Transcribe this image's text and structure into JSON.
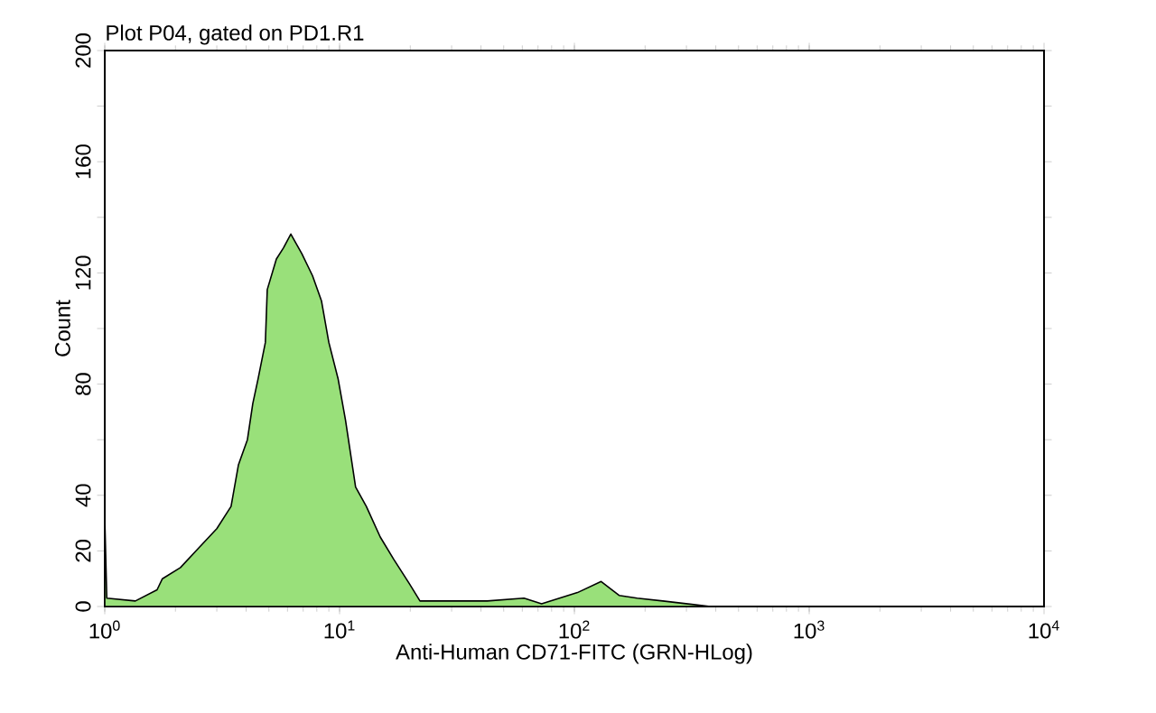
{
  "chart_data": {
    "type": "area",
    "title": "Plot P04, gated on PD1.R1",
    "xlabel": "Anti-Human CD71-FITC (GRN-HLog)",
    "ylabel": "Count",
    "log": "x",
    "xlim": [
      1,
      10000
    ],
    "ylim": [
      0,
      200
    ],
    "xticks": [
      {
        "value": 1,
        "label": "10$^{0}$"
      },
      {
        "value": 10,
        "label": "10$^{1}$"
      },
      {
        "value": 100,
        "label": "10$^{2}$"
      },
      {
        "value": 1000,
        "label": "10$^{3}$"
      },
      {
        "value": 10000,
        "label": "10$^{4}$"
      }
    ],
    "yticks": [
      0,
      20,
      40,
      {
        "value": 60,
        "label": null
      },
      80,
      {
        "value": 100,
        "label": null
      },
      120,
      {
        "value": 140,
        "label": null
      },
      160,
      {
        "value": 180,
        "label": null
      },
      200
    ],
    "series": [
      {
        "color": "#99e07a",
        "x": [
          1.0,
          1.02,
          1.35,
          1.67,
          1.76,
          2.1,
          2.51,
          3.0,
          3.45,
          3.71,
          4.05,
          4.27,
          4.5,
          4.83,
          4.92,
          5.38,
          5.77,
          6.2,
          6.9,
          7.67,
          8.37,
          9.0,
          9.85,
          10.6,
          11.7,
          13.0,
          14.9,
          17.0,
          19.9,
          22.0,
          30,
          42.5,
          61,
          72.5,
          103,
          130,
          155,
          185,
          238,
          380,
          10000
        ],
        "values": [
          32,
          3,
          2,
          6,
          10,
          14,
          21,
          28,
          36,
          51,
          60,
          73,
          82,
          95,
          114,
          125,
          129,
          134,
          127,
          119,
          110,
          95,
          82,
          67,
          43,
          36,
          25,
          17,
          8,
          2,
          2,
          2,
          3,
          1,
          5,
          9,
          4,
          3,
          2,
          0,
          0
        ]
      }
    ]
  }
}
